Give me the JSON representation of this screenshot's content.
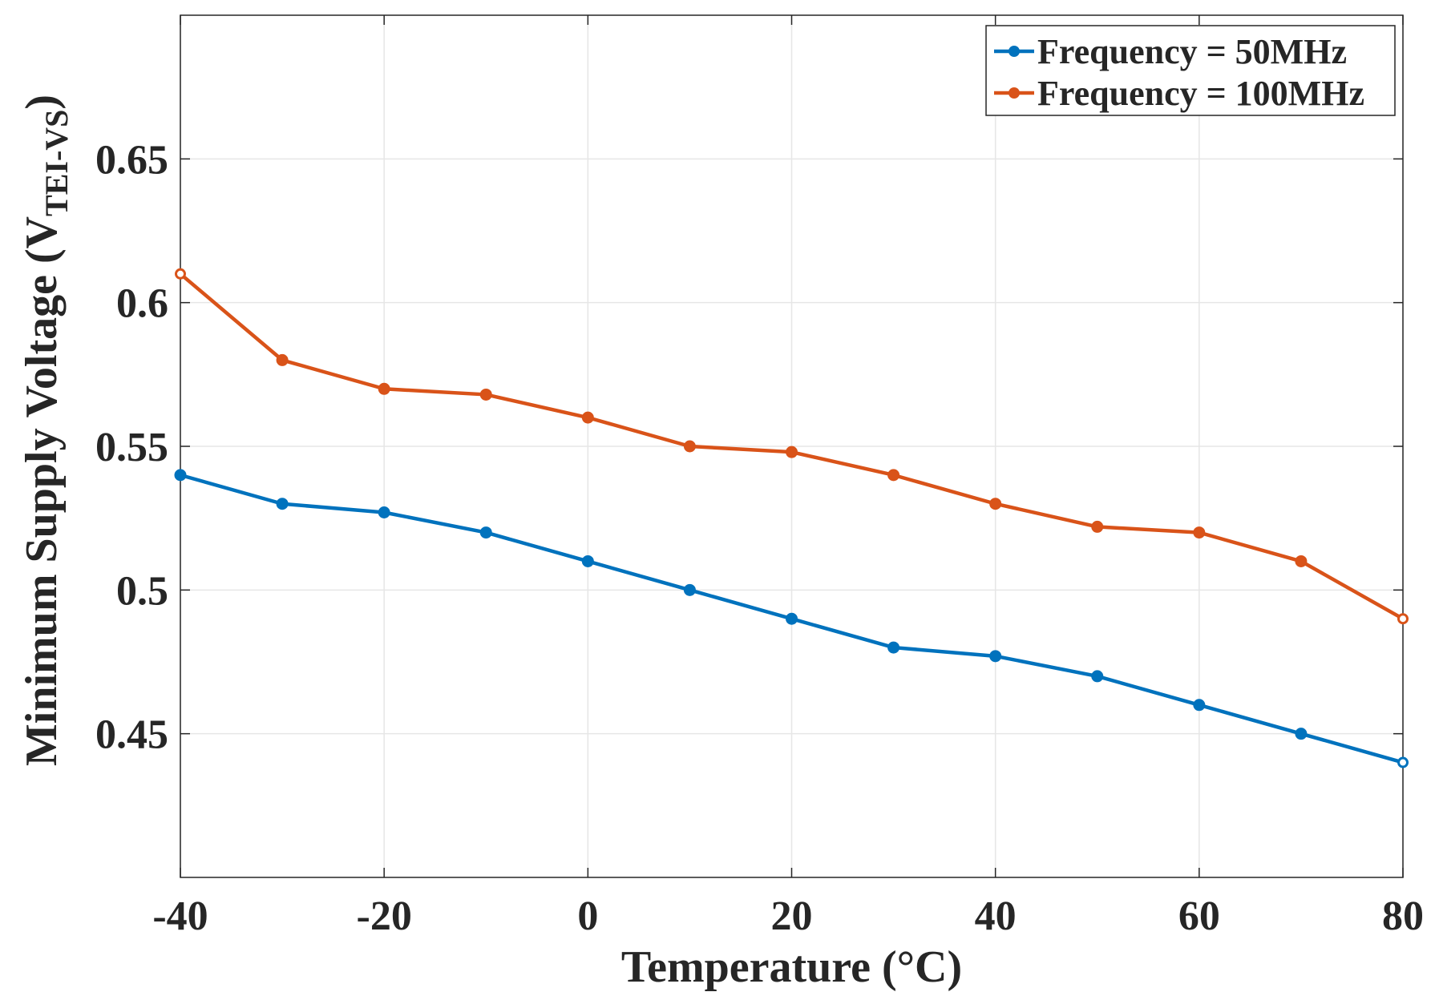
{
  "chart_data": {
    "type": "line",
    "title": "",
    "xlabel": "Temperature (°C)",
    "ylabel": {
      "main": "Minimum Supply Voltage (V",
      "subscript": "TEI-VS",
      "close": ")"
    },
    "xlim": [
      -40,
      80
    ],
    "ylim": [
      0.4,
      0.7
    ],
    "xticks": [
      -40,
      -20,
      0,
      20,
      40,
      60,
      80
    ],
    "xtick_labels": [
      "-40",
      "-20",
      "0",
      "20",
      "40",
      "60",
      "80"
    ],
    "yticks": [
      0.45,
      0.5,
      0.55,
      0.6,
      0.65
    ],
    "ytick_labels": [
      "0.45",
      "0.5",
      "0.55",
      "0.6",
      "0.65"
    ],
    "grid": true,
    "legend_position": "top-right",
    "x": [
      -40,
      -30,
      -20,
      -10,
      0,
      10,
      20,
      30,
      40,
      50,
      60,
      70,
      80
    ],
    "series": [
      {
        "name": "Frequency = 50MHz",
        "color": "#0072BD",
        "values": [
          0.54,
          0.53,
          0.527,
          0.52,
          0.51,
          0.5,
          0.49,
          0.48,
          0.477,
          0.47,
          0.46,
          0.45,
          0.44
        ]
      },
      {
        "name": "Frequency = 100MHz",
        "color": "#D95319",
        "values": [
          0.61,
          0.58,
          0.57,
          0.568,
          0.56,
          0.55,
          0.548,
          0.54,
          0.53,
          0.522,
          0.52,
          0.51,
          0.49
        ]
      }
    ]
  }
}
